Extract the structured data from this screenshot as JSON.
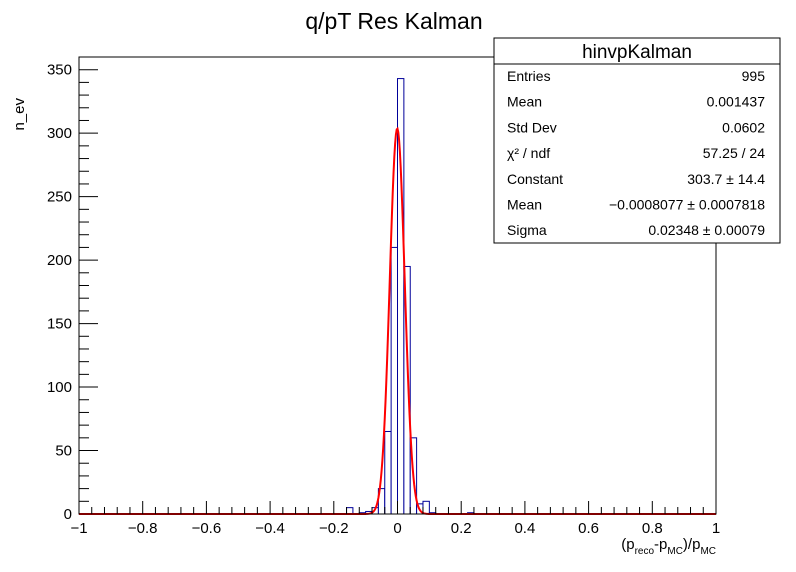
{
  "chart_data": {
    "type": "histogram",
    "title": "q/pT Res Kalman",
    "ylabel": "n_ev",
    "xlabel": {
      "prefix": "(p",
      "sub1": "reco",
      "mid": "-p",
      "sub2": "MC",
      "mid2": ")/p",
      "sub3": "MC"
    },
    "xlim": [
      -1,
      1
    ],
    "ylim": [
      0,
      360
    ],
    "x_ticks": [
      -1,
      -0.8,
      -0.6,
      -0.4,
      -0.2,
      0,
      0.2,
      0.4,
      0.6,
      0.8,
      1
    ],
    "x_tick_labels": [
      "−1",
      "−0.8",
      "−0.6",
      "−0.4",
      "−0.2",
      "0",
      "0.2",
      "0.4",
      "0.6",
      "0.8",
      "1"
    ],
    "y_ticks": [
      0,
      50,
      100,
      150,
      200,
      250,
      300,
      350
    ],
    "y_tick_labels": [
      "0",
      "50",
      "100",
      "150",
      "200",
      "250",
      "300",
      "350"
    ],
    "bin_width": 0.02,
    "bins": [
      {
        "x0": -0.16,
        "x1": -0.14,
        "count": 5
      },
      {
        "x0": -0.12,
        "x1": -0.1,
        "count": 1
      },
      {
        "x0": -0.1,
        "x1": -0.08,
        "count": 2
      },
      {
        "x0": -0.08,
        "x1": -0.06,
        "count": 5
      },
      {
        "x0": -0.06,
        "x1": -0.04,
        "count": 20
      },
      {
        "x0": -0.04,
        "x1": -0.02,
        "count": 65
      },
      {
        "x0": -0.02,
        "x1": 0.0,
        "count": 210
      },
      {
        "x0": 0.0,
        "x1": 0.02,
        "count": 343
      },
      {
        "x0": 0.02,
        "x1": 0.04,
        "count": 195
      },
      {
        "x0": 0.04,
        "x1": 0.06,
        "count": 60
      },
      {
        "x0": 0.06,
        "x1": 0.08,
        "count": 8
      },
      {
        "x0": 0.08,
        "x1": 0.1,
        "count": 10
      },
      {
        "x0": 0.1,
        "x1": 0.12,
        "count": 1
      },
      {
        "x0": 0.22,
        "x1": 0.24,
        "count": 1
      }
    ],
    "fit": {
      "function": "gaus",
      "constant": 303.7,
      "mean": -0.0008077,
      "sigma": 0.02348,
      "color": "#ff0000"
    },
    "hist_color": "#000099",
    "stats": {
      "name": "hinvpKalman",
      "rows": [
        {
          "label": "Entries",
          "value": "995"
        },
        {
          "label": "Mean",
          "value": "0.001437"
        },
        {
          "label": "Std Dev",
          "value": "0.0602"
        },
        {
          "label": "χ² / ndf",
          "value": "57.25 / 24"
        },
        {
          "label": "Constant",
          "value": "303.7 ± 14.4"
        },
        {
          "label": "Mean",
          "value": "−0.0008077 ± 0.0007818"
        },
        {
          "label": "Sigma",
          "value": "0.02348 ± 0.00079"
        }
      ]
    }
  }
}
